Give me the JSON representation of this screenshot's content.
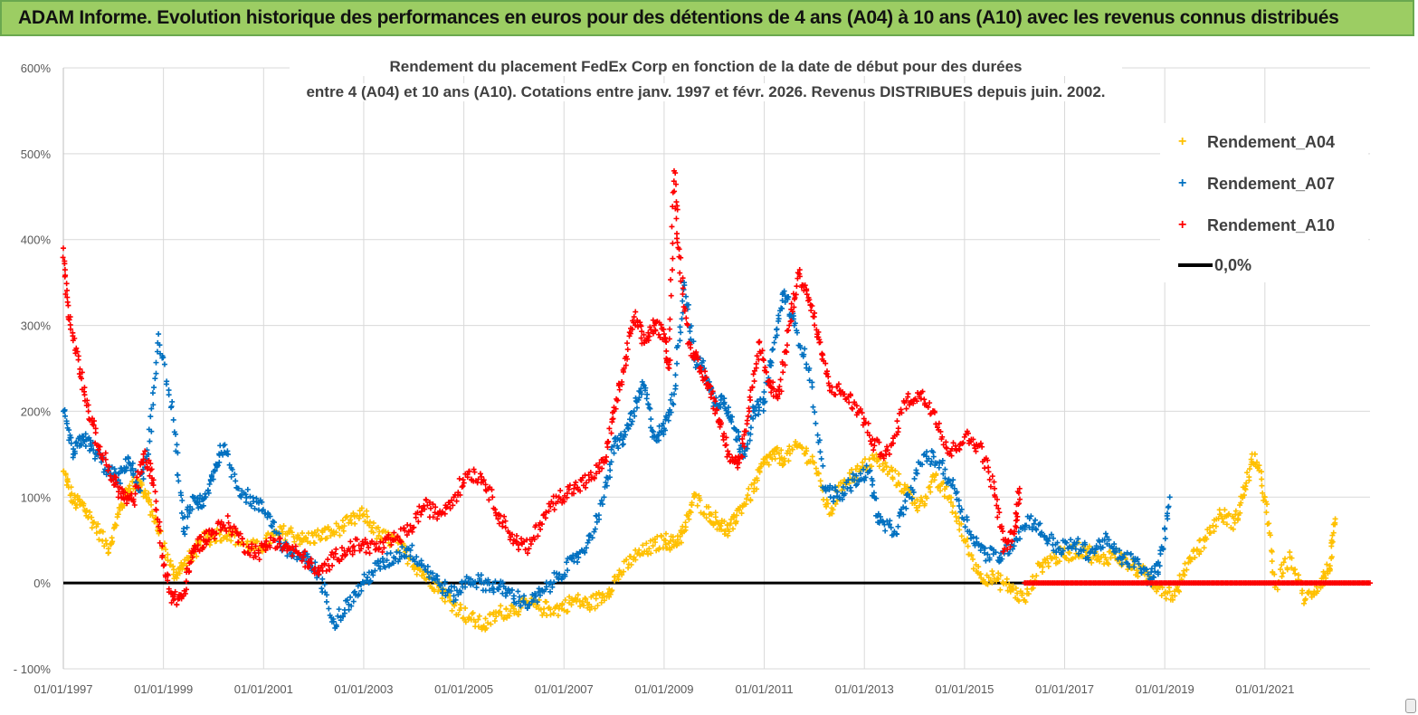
{
  "banner": {
    "title": "ADAM Informe. Evolution historique des performances en euros pour des détentions de 4 ans (A04) à 10 ans (A10) avec les revenus connus distribués"
  },
  "chart_data": {
    "type": "scatter",
    "title_line1": "Rendement du placement FedEx Corp en fonction de la date de début pour des durées",
    "title_line2": "entre 4 (A04) et 10 ans (A10).  Cotations entre janv. 1997 et févr. 2026. Revenus DISTRIBUES depuis juin. 2002.",
    "x_range": [
      1997.0,
      2023.1
    ],
    "ylim": [
      -100,
      600
    ],
    "y_ticks": [
      -100,
      0,
      100,
      200,
      300,
      400,
      500,
      600
    ],
    "y_tick_labels": [
      "- 100%",
      "0%",
      "100%",
      "200%",
      "300%",
      "400%",
      "500%",
      "600%"
    ],
    "x_ticks": [
      1997,
      1999,
      2001,
      2003,
      2005,
      2007,
      2009,
      2011,
      2013,
      2015,
      2017,
      2019,
      2021
    ],
    "x_tick_labels": [
      "01/01/1997",
      "01/01/1999",
      "01/01/2001",
      "01/01/2003",
      "01/01/2005",
      "01/01/2007",
      "01/01/2009",
      "01/01/2011",
      "01/01/2013",
      "01/01/2015",
      "01/01/2017",
      "01/01/2019",
      "01/01/2021"
    ],
    "legend_position": "top-right",
    "series": [
      {
        "name": "Rendement_A04",
        "color": "#ffc000",
        "x": [
          1997.0,
          1997.2,
          1997.4,
          1997.6,
          1997.9,
          1998.1,
          1998.3,
          1998.5,
          1998.7,
          1998.9,
          1999.2,
          1999.4,
          1999.6,
          1999.8,
          2000.0,
          2000.3,
          2000.6,
          2000.9,
          2001.2,
          2001.5,
          2001.8,
          2002.1,
          2002.4,
          2002.7,
          2003.0,
          2003.3,
          2003.6,
          2003.9,
          2004.2,
          2004.5,
          2004.8,
          2005.1,
          2005.4,
          2005.7,
          2006.0,
          2006.3,
          2006.6,
          2006.9,
          2007.2,
          2007.5,
          2007.8,
          2008.1,
          2008.4,
          2008.7,
          2009.0,
          2009.2,
          2009.4,
          2009.6,
          2009.9,
          2010.1,
          2010.3,
          2010.5,
          2010.8,
          2011.0,
          2011.2,
          2011.4,
          2011.7,
          2012.0,
          2012.3,
          2012.6,
          2012.9,
          2013.2,
          2013.5,
          2013.8,
          2014.1,
          2014.4,
          2014.7,
          2015.0,
          2015.3,
          2015.6,
          2015.9,
          2016.2,
          2016.5,
          2016.8,
          2017.1,
          2017.4,
          2017.7,
          2018.0,
          2018.3,
          2018.6,
          2018.9,
          2019.2,
          2019.5,
          2019.8,
          2020.1,
          2020.4,
          2020.6,
          2020.8,
          2021.0,
          2021.2,
          2021.5,
          2021.8,
          2022.1,
          2022.3,
          2022.4
        ],
        "values": [
          130,
          95,
          90,
          70,
          40,
          80,
          110,
          120,
          95,
          60,
          10,
          20,
          35,
          50,
          55,
          60,
          45,
          40,
          55,
          60,
          50,
          55,
          60,
          70,
          80,
          55,
          50,
          30,
          10,
          -5,
          -25,
          -40,
          -50,
          -35,
          -30,
          -25,
          -30,
          -30,
          -20,
          -25,
          -15,
          10,
          30,
          40,
          50,
          45,
          60,
          100,
          80,
          70,
          60,
          85,
          110,
          140,
          150,
          145,
          160,
          140,
          80,
          120,
          130,
          145,
          130,
          110,
          90,
          120,
          100,
          50,
          10,
          5,
          -5,
          -20,
          20,
          30,
          35,
          40,
          25,
          35,
          20,
          10,
          -5,
          -15,
          30,
          50,
          80,
          70,
          110,
          150,
          100,
          -5,
          30,
          -20,
          0,
          20,
          70
        ]
      },
      {
        "name": "Rendement_A07",
        "color": "#0070c0",
        "x": [
          1997.0,
          1997.2,
          1997.4,
          1997.6,
          1997.9,
          1998.1,
          1998.3,
          1998.5,
          1998.7,
          1998.9,
          1999.2,
          1999.4,
          1999.6,
          1999.8,
          2000.0,
          2000.2,
          2000.5,
          2000.8,
          2001.1,
          2001.4,
          2001.7,
          2001.9,
          2002.1,
          2002.4,
          2002.7,
          2003.0,
          2003.3,
          2003.6,
          2003.9,
          2004.2,
          2004.5,
          2004.8,
          2005.1,
          2005.4,
          2005.7,
          2006.0,
          2006.3,
          2006.6,
          2006.9,
          2007.2,
          2007.5,
          2007.8,
          2008.0,
          2008.2,
          2008.4,
          2008.6,
          2008.8,
          2009.0,
          2009.2,
          2009.4,
          2009.6,
          2009.8,
          2010.0,
          2010.2,
          2010.4,
          2010.6,
          2010.8,
          2011.0,
          2011.2,
          2011.4,
          2011.6,
          2011.9,
          2012.2,
          2012.5,
          2012.8,
          2013.1,
          2013.3,
          2013.6,
          2013.9,
          2014.2,
          2014.5,
          2014.8,
          2015.1,
          2015.4,
          2015.7,
          2016.0,
          2016.3,
          2016.6,
          2016.9,
          2017.2,
          2017.5,
          2017.8,
          2018.1,
          2018.4,
          2018.7,
          2018.9,
          2019.1
        ],
        "values": [
          200,
          150,
          170,
          155,
          130,
          120,
          145,
          110,
          150,
          290,
          190,
          60,
          100,
          90,
          130,
          160,
          110,
          95,
          80,
          40,
          30,
          25,
          10,
          -45,
          -25,
          0,
          20,
          30,
          40,
          20,
          0,
          -15,
          5,
          0,
          -5,
          -15,
          -25,
          -10,
          10,
          25,
          50,
          100,
          160,
          170,
          200,
          230,
          170,
          180,
          220,
          350,
          260,
          250,
          210,
          215,
          180,
          150,
          200,
          210,
          280,
          340,
          300,
          250,
          110,
          100,
          120,
          130,
          70,
          60,
          100,
          150,
          140,
          110,
          60,
          35,
          30,
          50,
          75,
          55,
          40,
          45,
          35,
          50,
          30,
          25,
          5,
          20,
          100
        ]
      },
      {
        "name": "Rendement_A10",
        "color": "#ff0000",
        "x": [
          1997.0,
          1997.1,
          1997.3,
          1997.5,
          1997.7,
          1998.0,
          1998.2,
          1998.4,
          1998.6,
          1998.8,
          1999.0,
          1999.2,
          1999.4,
          1999.6,
          1999.8,
          2000.0,
          2000.3,
          2000.6,
          2000.9,
          2001.2,
          2001.5,
          2001.8,
          2002.1,
          2002.4,
          2002.7,
          2003.0,
          2003.3,
          2003.6,
          2003.9,
          2004.2,
          2004.5,
          2004.8,
          2005.1,
          2005.4,
          2005.7,
          2006.0,
          2006.3,
          2006.6,
          2006.9,
          2007.2,
          2007.5,
          2007.8,
          2008.0,
          2008.2,
          2008.4,
          2008.6,
          2008.8,
          2009.0,
          2009.1,
          2009.2,
          2009.3,
          2009.5,
          2009.7,
          2009.9,
          2010.1,
          2010.3,
          2010.5,
          2010.7,
          2010.9,
          2011.1,
          2011.3,
          2011.5,
          2011.7,
          2011.9,
          2012.1,
          2012.3,
          2012.6,
          2012.9,
          2013.2,
          2013.5,
          2013.8,
          2014.1,
          2014.4,
          2014.7,
          2015.0,
          2015.3,
          2015.6,
          2015.8,
          2016.0,
          2016.1
        ],
        "values": [
          390,
          310,
          260,
          200,
          160,
          120,
          100,
          95,
          150,
          120,
          20,
          -20,
          -15,
          40,
          50,
          60,
          70,
          45,
          35,
          50,
          40,
          30,
          10,
          30,
          40,
          45,
          40,
          50,
          60,
          90,
          80,
          100,
          130,
          120,
          80,
          50,
          40,
          80,
          100,
          110,
          120,
          140,
          200,
          250,
          310,
          280,
          300,
          290,
          250,
          480,
          380,
          280,
          250,
          230,
          190,
          150,
          140,
          200,
          280,
          230,
          220,
          300,
          360,
          330,
          280,
          230,
          220,
          200,
          160,
          150,
          210,
          220,
          200,
          150,
          170,
          160,
          110,
          40,
          60,
          110
        ]
      }
    ],
    "zero_line": {
      "label": "0,0%",
      "segments": [
        [
          1997.0,
          2023.1
        ]
      ]
    },
    "a10_flat": {
      "from": 2016.2,
      "to": 2023.1,
      "value": 0
    }
  }
}
